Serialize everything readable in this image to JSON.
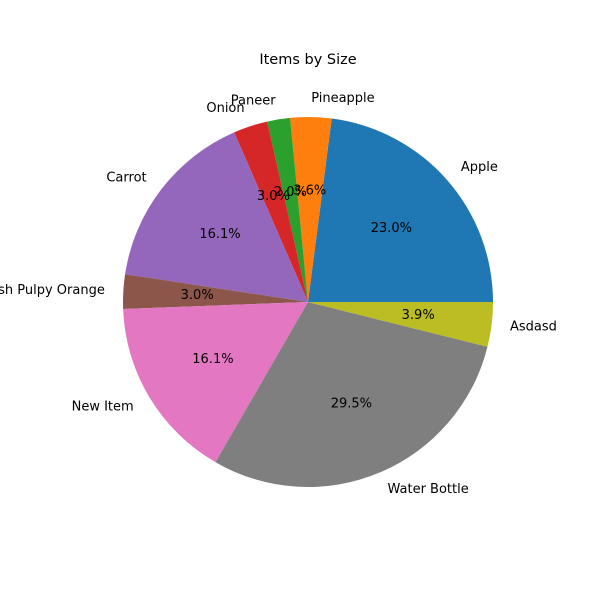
{
  "chart_data": {
    "type": "pie",
    "title": "Items by Size",
    "start_angle_deg": 0,
    "direction": "counterclockwise",
    "slices": [
      {
        "label": "Apple",
        "percent_label": "23.0%",
        "value": 23.0,
        "color": "#1f77b4"
      },
      {
        "label": "Pineapple",
        "percent_label": "3.6%",
        "value": 3.6,
        "color": "#ff7f0e"
      },
      {
        "label": "Paneer",
        "percent_label": "2.0%",
        "value": 2.0,
        "color": "#2ca02c"
      },
      {
        "label": "Onion",
        "percent_label": "3.0%",
        "value": 3.0,
        "color": "#d62728"
      },
      {
        "label": "Carrot",
        "percent_label": "16.1%",
        "value": 16.1,
        "color": "#9467bd"
      },
      {
        "label": "Fresh Pulpy Orange",
        "percent_label": "3.0%",
        "value": 3.0,
        "color": "#8c564b"
      },
      {
        "label": "New Item",
        "percent_label": "16.1%",
        "value": 16.1,
        "color": "#e377c2"
      },
      {
        "label": "Water Bottle",
        "percent_label": "29.5%",
        "value": 29.5,
        "color": "#7f7f7f"
      },
      {
        "label": "Asdasd",
        "percent_label": "3.9%",
        "value": 3.9,
        "color": "#bcbd22"
      }
    ]
  }
}
